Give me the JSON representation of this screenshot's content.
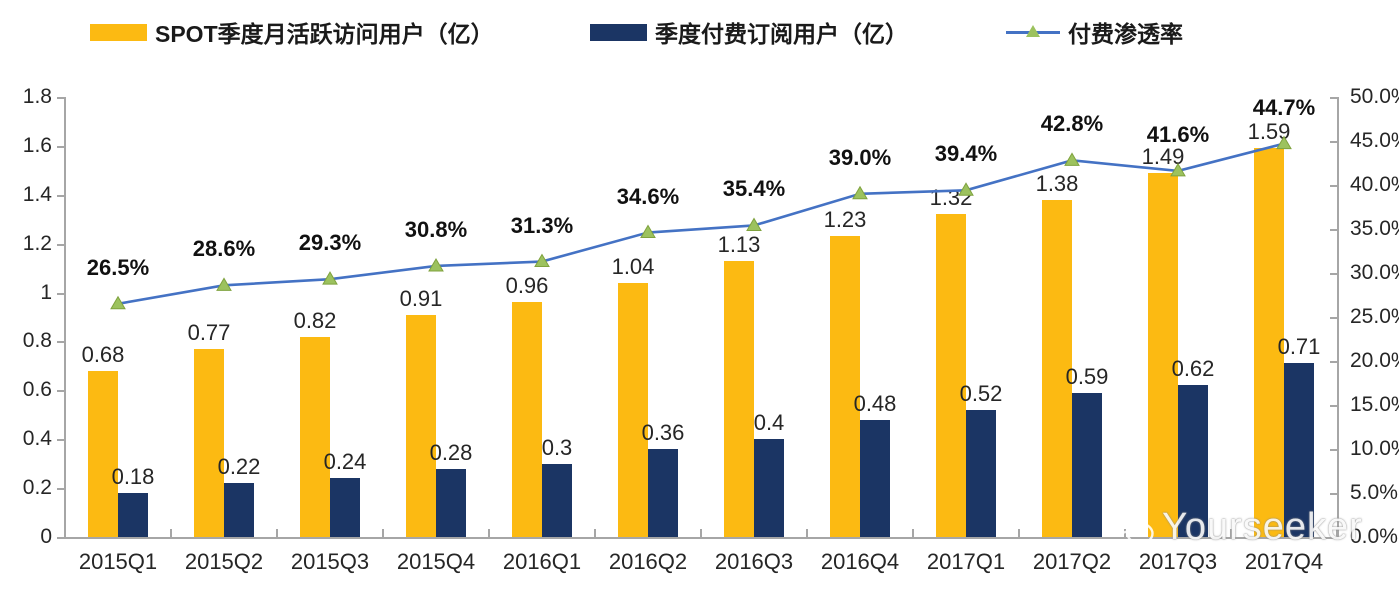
{
  "legend": [
    {
      "label": "SPOT季度月活跃访问用户（亿）",
      "type": "bar",
      "color": "#FCBA12"
    },
    {
      "label": "季度付费订阅用户（亿）",
      "type": "bar",
      "color": "#1B3564"
    },
    {
      "label": "付费渗透率",
      "type": "line",
      "color": "#4472C4",
      "marker_color": "#9CC25E"
    }
  ],
  "chart_data": {
    "type": "bar",
    "subtype": "combo-bar-line",
    "title": "",
    "categories": [
      "2015Q1",
      "2015Q2",
      "2015Q3",
      "2015Q4",
      "2016Q1",
      "2016Q2",
      "2016Q3",
      "2016Q4",
      "2017Q1",
      "2017Q2",
      "2017Q3",
      "2017Q4"
    ],
    "series": [
      {
        "name": "SPOT季度月活跃访问用户（亿）",
        "type": "bar",
        "axis": "left",
        "color": "#FCBA12",
        "values": [
          0.68,
          0.77,
          0.82,
          0.91,
          0.96,
          1.04,
          1.13,
          1.23,
          1.32,
          1.38,
          1.49,
          1.59
        ],
        "labels": [
          "0.68",
          "0.77",
          "0.82",
          "0.91",
          "0.96",
          "1.04",
          "1.13",
          "1.23",
          "1.32",
          "1.38",
          "1.49",
          "1.59"
        ]
      },
      {
        "name": "季度付费订阅用户（亿）",
        "type": "bar",
        "axis": "left",
        "color": "#1B3564",
        "values": [
          0.18,
          0.22,
          0.24,
          0.28,
          0.3,
          0.36,
          0.4,
          0.48,
          0.52,
          0.59,
          0.62,
          0.71
        ],
        "labels": [
          "0.18",
          "0.22",
          "0.24",
          "0.28",
          "0.3",
          "0.36",
          "0.4",
          "0.48",
          "0.52",
          "0.59",
          "0.62",
          "0.71"
        ]
      },
      {
        "name": "付费渗透率",
        "type": "line",
        "axis": "right",
        "color": "#4472C4",
        "marker": "triangle",
        "marker_color": "#9CC25E",
        "marker_edge": "#7FA23E",
        "values": [
          26.5,
          28.6,
          29.3,
          30.8,
          31.3,
          34.6,
          35.4,
          39.0,
          39.4,
          42.8,
          41.6,
          44.7
        ],
        "labels": [
          "26.5%",
          "28.6%",
          "29.3%",
          "30.8%",
          "31.3%",
          "34.6%",
          "35.4%",
          "39.0%",
          "39.4%",
          "42.8%",
          "41.6%",
          "44.7%"
        ]
      }
    ],
    "left_axis": {
      "min": 0,
      "max": 1.8,
      "ticks": [
        "1.8",
        "1.6",
        "1.4",
        "1.2",
        "1",
        "0.8",
        "0.6",
        "0.4",
        "0.2",
        "0"
      ]
    },
    "right_axis": {
      "min": 0,
      "max": 50,
      "ticks": [
        "50.0%",
        "45.0%",
        "40.0%",
        "35.0%",
        "30.0%",
        "25.0%",
        "20.0%",
        "15.0%",
        "10.0%",
        "5.0%",
        "0.0%"
      ]
    },
    "grid": false,
    "legend_position": "top"
  },
  "watermark": {
    "text": "Yourseeker",
    "icon": "wechat-icon"
  }
}
